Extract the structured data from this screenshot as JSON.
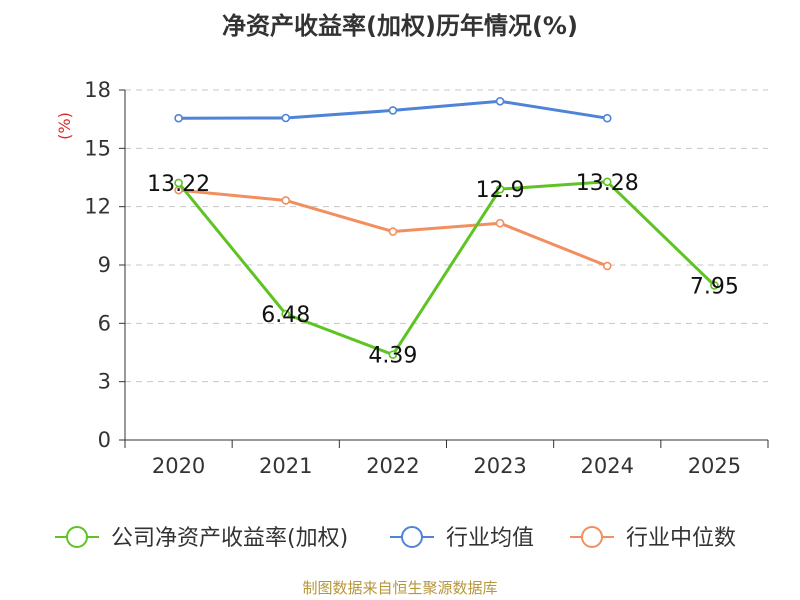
{
  "chart_data": {
    "type": "line",
    "title": "净资产收益率(加权)历年情况(%)",
    "ylabel": "(%)",
    "ylim": [
      0,
      18
    ],
    "yticks": [
      0,
      3,
      6,
      9,
      12,
      15,
      18
    ],
    "categories": [
      "2020",
      "2021",
      "2022",
      "2023",
      "2024",
      "2025"
    ],
    "series": [
      {
        "name": "公司净资产收益率(加权)",
        "color": "#5ec423",
        "values": [
          13.22,
          6.48,
          4.39,
          12.9,
          13.28,
          7.95
        ],
        "labels": [
          "13.22",
          "6.48",
          "4.39",
          "12.9",
          "13.28",
          "7.95"
        ]
      },
      {
        "name": "行业均值",
        "color": "#4f83d8",
        "values": [
          16.55,
          16.56,
          16.95,
          17.42,
          16.55,
          null
        ]
      },
      {
        "name": "行业中位数",
        "color": "#f28f5f",
        "values": [
          12.85,
          12.32,
          10.72,
          11.15,
          8.95,
          null
        ]
      }
    ],
    "grid": true,
    "legend_position": "bottom"
  },
  "footer": "制图数据来自恒生聚源数据库",
  "ylabel_color": "#d92b2b"
}
